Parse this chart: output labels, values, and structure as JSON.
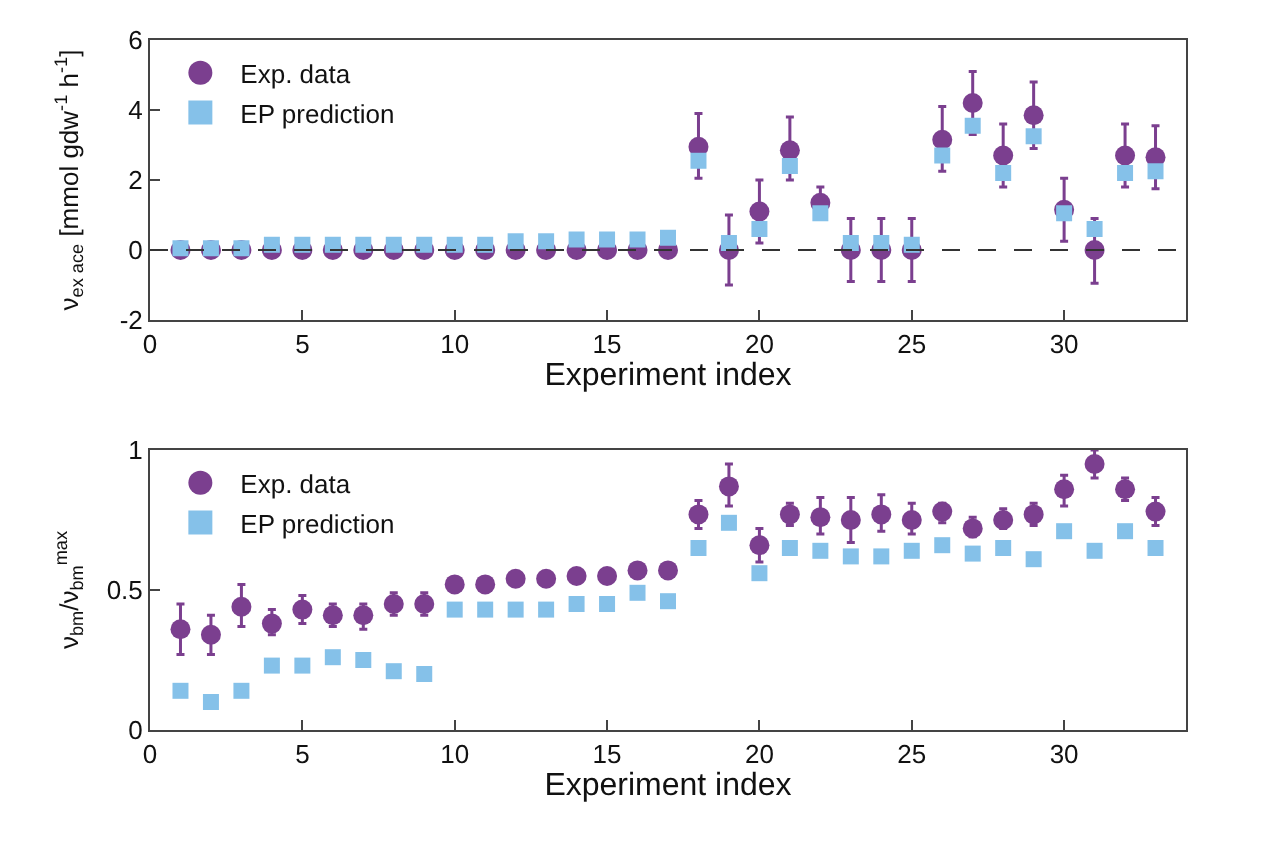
{
  "chart_data": [
    {
      "type": "scatter",
      "xlabel": "Experiment index",
      "ylabel": "ν$_{ex ace}$ [mmol gdw$^{-1}$ h$^{-1}$]",
      "x": [
        1,
        2,
        3,
        4,
        5,
        6,
        7,
        8,
        9,
        10,
        11,
        12,
        13,
        14,
        15,
        16,
        17,
        18,
        19,
        20,
        21,
        22,
        23,
        24,
        25,
        26,
        27,
        28,
        29,
        30,
        31,
        32,
        33
      ],
      "series": [
        {
          "name": "Exp. data",
          "color": "#7b3f8f",
          "marker": "circle",
          "values": [
            0,
            0,
            0,
            0,
            0,
            0,
            0,
            0,
            0,
            0,
            0,
            0,
            0,
            0,
            0,
            0,
            0,
            2.95,
            0,
            1.1,
            2.85,
            1.35,
            0,
            0,
            0,
            3.15,
            4.2,
            2.7,
            3.85,
            1.15,
            0,
            2.7,
            2.65
          ],
          "errors": [
            null,
            null,
            null,
            null,
            null,
            null,
            null,
            null,
            null,
            null,
            null,
            null,
            null,
            null,
            null,
            null,
            null,
            [
              2.05,
              3.9
            ],
            [
              -1,
              1
            ],
            [
              0.2,
              2.0
            ],
            [
              2.0,
              3.8
            ],
            [
              1.35,
              1.8
            ],
            [
              -0.9,
              0.9
            ],
            [
              -0.9,
              0.9
            ],
            [
              -0.9,
              0.9
            ],
            [
              2.25,
              4.1
            ],
            [
              3.3,
              5.1
            ],
            [
              1.8,
              3.6
            ],
            [
              2.9,
              4.8
            ],
            [
              0.25,
              2.05
            ],
            [
              -0.95,
              0.9
            ],
            [
              1.8,
              3.6
            ],
            [
              1.75,
              3.55
            ]
          ]
        },
        {
          "name": "EP prediction",
          "color": "#85c1e9",
          "marker": "square",
          "values": [
            0.05,
            0.05,
            0.05,
            0.15,
            0.15,
            0.15,
            0.15,
            0.15,
            0.15,
            0.15,
            0.15,
            0.25,
            0.25,
            0.3,
            0.3,
            0.3,
            0.35,
            2.55,
            0.2,
            0.6,
            2.4,
            1.05,
            0.2,
            0.2,
            0.15,
            2.7,
            3.55,
            2.2,
            3.25,
            1.05,
            0.6,
            2.2,
            2.25
          ]
        }
      ],
      "ref_lines": [
        {
          "axis": "y",
          "value": 0,
          "color": "#333333",
          "line_style": "dashed"
        }
      ],
      "xlim": [
        0,
        34
      ],
      "xticks": [
        0,
        5,
        10,
        15,
        20,
        25,
        30
      ],
      "ylim": [
        -2,
        6
      ],
      "yticks": [
        -2,
        0,
        2,
        4,
        6
      ],
      "legend": "top left"
    },
    {
      "type": "scatter",
      "xlabel": "Experiment index",
      "ylabel": "ν$_{bm}$/ν$_{bm}$$^{max}$",
      "x": [
        1,
        2,
        3,
        4,
        5,
        6,
        7,
        8,
        9,
        10,
        11,
        12,
        13,
        14,
        15,
        16,
        17,
        18,
        19,
        20,
        21,
        22,
        23,
        24,
        25,
        26,
        27,
        28,
        29,
        30,
        31,
        32,
        33
      ],
      "series": [
        {
          "name": "Exp. data",
          "color": "#7b3f8f",
          "marker": "circle",
          "values": [
            0.36,
            0.34,
            0.44,
            0.38,
            0.43,
            0.41,
            0.41,
            0.45,
            0.45,
            0.52,
            0.52,
            0.54,
            0.54,
            0.55,
            0.55,
            0.57,
            0.57,
            0.77,
            0.87,
            0.66,
            0.77,
            0.76,
            0.75,
            0.77,
            0.75,
            0.78,
            0.72,
            0.75,
            0.77,
            0.86,
            0.95,
            0.86,
            0.78
          ],
          "errors": [
            [
              0.27,
              0.45
            ],
            [
              0.27,
              0.41
            ],
            [
              0.37,
              0.52
            ],
            [
              0.34,
              0.43
            ],
            [
              0.38,
              0.48
            ],
            [
              0.37,
              0.45
            ],
            [
              0.36,
              0.45
            ],
            [
              0.41,
              0.49
            ],
            [
              0.41,
              0.49
            ],
            null,
            null,
            null,
            null,
            null,
            null,
            null,
            null,
            [
              0.72,
              0.82
            ],
            [
              0.8,
              0.95
            ],
            [
              0.6,
              0.72
            ],
            [
              0.73,
              0.81
            ],
            [
              0.7,
              0.83
            ],
            [
              0.67,
              0.83
            ],
            [
              0.71,
              0.84
            ],
            [
              0.7,
              0.81
            ],
            [
              0.74,
              0.81
            ],
            [
              0.69,
              0.76
            ],
            [
              0.72,
              0.79
            ],
            [
              0.73,
              0.81
            ],
            [
              0.8,
              0.91
            ],
            [
              0.9,
              1.0
            ],
            [
              0.82,
              0.9
            ],
            [
              0.73,
              0.83
            ]
          ]
        },
        {
          "name": "EP prediction",
          "color": "#85c1e9",
          "marker": "square",
          "values": [
            0.14,
            0.1,
            0.14,
            0.23,
            0.23,
            0.26,
            0.25,
            0.21,
            0.2,
            0.43,
            0.43,
            0.43,
            0.43,
            0.45,
            0.45,
            0.49,
            0.46,
            0.65,
            0.74,
            0.56,
            0.65,
            0.64,
            0.62,
            0.62,
            0.64,
            0.66,
            0.63,
            0.65,
            0.61,
            0.71,
            0.64,
            0.71,
            0.65
          ]
        }
      ],
      "xlim": [
        0,
        34
      ],
      "xticks": [
        0,
        5,
        10,
        15,
        20,
        25,
        30
      ],
      "ylim": [
        0,
        1
      ],
      "yticks": [
        0,
        0.5,
        1
      ],
      "legend": "top left"
    }
  ]
}
